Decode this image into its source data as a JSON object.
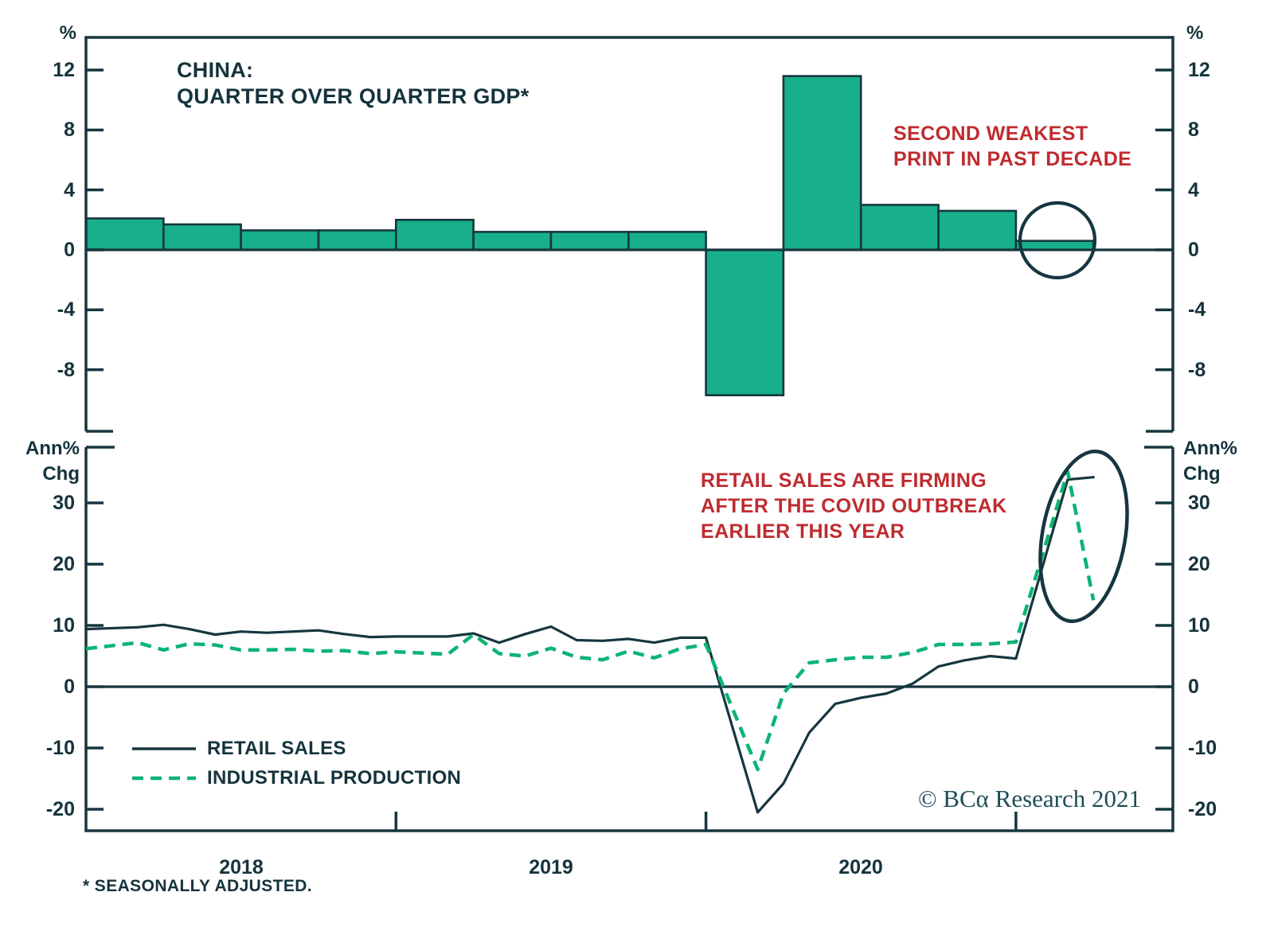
{
  "colors": {
    "background": "#ffffff",
    "dark_line": "#16363f",
    "dark_text": "#15333c",
    "bar_fill": "#17b08a",
    "ip_green": "#0cb474",
    "annotation_red": "#bf2b2f",
    "copyright_teal": "#1d4d57"
  },
  "top_chart": {
    "title_lines": [
      "CHINA:",
      "QUARTER OVER QUARTER GDP*"
    ],
    "unit_left": "%",
    "unit_right": "%",
    "annotation_lines": [
      "SECOND WEAKEST",
      "PRINT IN PAST DECADE"
    ]
  },
  "bottom_chart": {
    "unit_lines": [
      "Ann%",
      "Chg"
    ],
    "annotation_lines": [
      "RETAIL SALES ARE FIRMING",
      "AFTER THE COVID OUTBREAK",
      "EARLIER THIS YEAR"
    ],
    "legend": [
      {
        "label": "RETAIL SALES",
        "style": "solid"
      },
      {
        "label": "INDUSTRIAL PRODUCTION",
        "style": "dashed"
      }
    ]
  },
  "x_axis": {
    "year_labels": [
      "2018",
      "2019",
      "2020"
    ]
  },
  "footer": {
    "copyright": "© BCα Research 2021",
    "footnote": "* SEASONALLY ADJUSTED."
  },
  "chart_data": [
    {
      "type": "bar",
      "title": "CHINA: QUARTER OVER QUARTER GDP*",
      "xlabel": "",
      "ylabel": "%",
      "grid": false,
      "categories": [
        "2018 Q1",
        "2018 Q2",
        "2018 Q3",
        "2018 Q4",
        "2019 Q1",
        "2019 Q2",
        "2019 Q3",
        "2019 Q4",
        "2020 Q1",
        "2020 Q2",
        "2020 Q3",
        "2020 Q4",
        "2021 Q1"
      ],
      "values": [
        2.1,
        1.7,
        1.3,
        1.3,
        2.0,
        1.2,
        1.2,
        1.2,
        -9.7,
        11.6,
        3.0,
        2.6,
        0.6
      ],
      "yticks": [
        12,
        8,
        4,
        0,
        -4,
        -8
      ],
      "ylim": [
        -12.2,
        14.2
      ],
      "annotation": "SECOND WEAKEST PRINT IN PAST DECADE",
      "circled_category": "2021 Q1"
    },
    {
      "type": "line",
      "xlabel": "",
      "ylabel": "Ann% Chg",
      "grid": false,
      "legend_position": "lower-left",
      "yticks": [
        30,
        20,
        10,
        0,
        -10,
        -20
      ],
      "ylim": [
        -23.5,
        39.1
      ],
      "x_years": [
        2018,
        2019,
        2020
      ],
      "annotation": "RETAIL SALES ARE FIRMING AFTER THE COVID OUTBREAK EARLIER THIS YEAR",
      "series": [
        {
          "name": "RETAIL SALES",
          "style": "solid",
          "points": [
            [
              2018.0,
              9.4
            ],
            [
              2018.167,
              9.7
            ],
            [
              2018.25,
              10.1
            ],
            [
              2018.333,
              9.4
            ],
            [
              2018.417,
              8.5
            ],
            [
              2018.5,
              9.0
            ],
            [
              2018.583,
              8.8
            ],
            [
              2018.667,
              9.0
            ],
            [
              2018.75,
              9.2
            ],
            [
              2018.833,
              8.6
            ],
            [
              2018.917,
              8.1
            ],
            [
              2019.0,
              8.2
            ],
            [
              2019.167,
              8.2
            ],
            [
              2019.25,
              8.7
            ],
            [
              2019.333,
              7.2
            ],
            [
              2019.417,
              8.6
            ],
            [
              2019.5,
              9.8
            ],
            [
              2019.583,
              7.6
            ],
            [
              2019.667,
              7.5
            ],
            [
              2019.75,
              7.8
            ],
            [
              2019.833,
              7.2
            ],
            [
              2019.917,
              8.0
            ],
            [
              2020.0,
              8.0
            ],
            [
              2020.167,
              -20.5
            ],
            [
              2020.25,
              -15.8
            ],
            [
              2020.333,
              -7.5
            ],
            [
              2020.417,
              -2.8
            ],
            [
              2020.5,
              -1.8
            ],
            [
              2020.583,
              -1.1
            ],
            [
              2020.667,
              0.5
            ],
            [
              2020.75,
              3.3
            ],
            [
              2020.833,
              4.3
            ],
            [
              2020.917,
              5.0
            ],
            [
              2021.0,
              4.6
            ],
            [
              2021.167,
              33.8
            ],
            [
              2021.25,
              34.2
            ]
          ]
        },
        {
          "name": "INDUSTRIAL PRODUCTION",
          "style": "dashed",
          "points": [
            [
              2018.0,
              6.2
            ],
            [
              2018.167,
              7.2
            ],
            [
              2018.25,
              6.0
            ],
            [
              2018.333,
              7.0
            ],
            [
              2018.417,
              6.8
            ],
            [
              2018.5,
              6.0
            ],
            [
              2018.583,
              6.0
            ],
            [
              2018.667,
              6.1
            ],
            [
              2018.75,
              5.8
            ],
            [
              2018.833,
              5.9
            ],
            [
              2018.917,
              5.4
            ],
            [
              2019.0,
              5.7
            ],
            [
              2019.167,
              5.3
            ],
            [
              2019.25,
              8.5
            ],
            [
              2019.333,
              5.4
            ],
            [
              2019.417,
              5.0
            ],
            [
              2019.5,
              6.3
            ],
            [
              2019.583,
              4.8
            ],
            [
              2019.667,
              4.4
            ],
            [
              2019.75,
              5.8
            ],
            [
              2019.833,
              4.7
            ],
            [
              2019.917,
              6.2
            ],
            [
              2020.0,
              6.9
            ],
            [
              2020.167,
              -13.5
            ],
            [
              2020.25,
              -1.1
            ],
            [
              2020.333,
              3.9
            ],
            [
              2020.417,
              4.4
            ],
            [
              2020.5,
              4.8
            ],
            [
              2020.583,
              4.8
            ],
            [
              2020.667,
              5.6
            ],
            [
              2020.75,
              6.9
            ],
            [
              2020.833,
              6.9
            ],
            [
              2020.917,
              7.0
            ],
            [
              2021.0,
              7.3
            ],
            [
              2021.167,
              35.1
            ],
            [
              2021.25,
              14.1
            ]
          ]
        }
      ]
    }
  ]
}
